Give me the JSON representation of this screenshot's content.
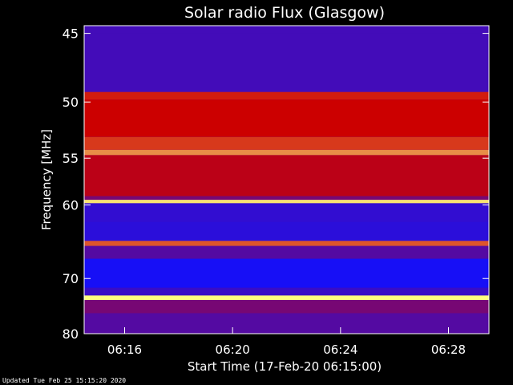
{
  "chart_data": {
    "type": "heatmap",
    "title": "Solar radio Flux (Glasgow)",
    "xlabel": "Start Time (17-Feb-20 06:15:00)",
    "ylabel": "Frequency [MHz]",
    "x_ticks": [
      "06:16",
      "06:20",
      "06:24",
      "06:28"
    ],
    "x_tick_minutes": [
      16,
      20,
      24,
      28
    ],
    "x_range_minutes": [
      14.5,
      29.5
    ],
    "y_ticks": [
      45,
      50,
      55,
      60,
      70,
      80
    ],
    "y_scale": "reciprocal",
    "y_range_mhz": [
      44.5,
      80
    ],
    "bands": [
      {
        "from": 45.0,
        "to": 49.2,
        "level": 0.15
      },
      {
        "from": 49.2,
        "to": 49.8,
        "level": 0.6
      },
      {
        "from": 49.8,
        "to": 53.0,
        "level": 0.55
      },
      {
        "from": 53.0,
        "to": 54.2,
        "level": 0.65
      },
      {
        "from": 54.2,
        "to": 54.7,
        "level": 0.8
      },
      {
        "from": 54.7,
        "to": 59.0,
        "level": 0.5
      },
      {
        "from": 59.0,
        "to": 59.4,
        "level": 0.3
      },
      {
        "from": 59.4,
        "to": 59.8,
        "level": 0.95
      },
      {
        "from": 59.8,
        "to": 62.0,
        "level": 0.1
      },
      {
        "from": 62.0,
        "to": 64.5,
        "level": 0.08
      },
      {
        "from": 64.5,
        "to": 65.2,
        "level": 0.7
      },
      {
        "from": 65.2,
        "to": 67.0,
        "level": 0.2
      },
      {
        "from": 67.0,
        "to": 71.5,
        "level": 0.02
      },
      {
        "from": 71.5,
        "to": 72.8,
        "level": 0.12
      },
      {
        "from": 72.8,
        "to": 73.6,
        "level": 1.0
      },
      {
        "from": 73.6,
        "to": 76.0,
        "level": 0.3
      },
      {
        "from": 76.0,
        "to": 80.0,
        "level": 0.2
      }
    ],
    "colors": {
      "low": "#1010ff",
      "mid": "#cc0000",
      "high": "#ffff80",
      "frame": "#ffffff"
    },
    "grid": false
  },
  "footer": {
    "updated": "Updated Tue Feb 25 15:15:20 2020"
  }
}
